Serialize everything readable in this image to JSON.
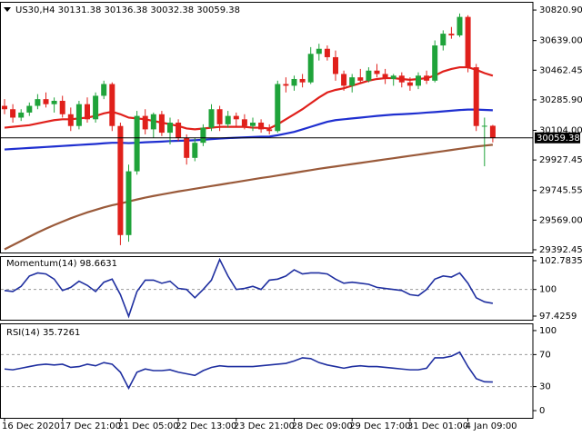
{
  "chart_data": [
    {
      "type": "candlestick",
      "title": "US30,H4  30131.38 30136.38 30032.38 30059.38",
      "categories": [
        "16 Dec 2020",
        null,
        null,
        null,
        null,
        null,
        null,
        "17 Dec 21:00",
        null,
        null,
        null,
        null,
        null,
        null,
        "21 Dec 05:00",
        null,
        null,
        null,
        null,
        null,
        null,
        "22 Dec 13:00",
        null,
        null,
        null,
        null,
        null,
        null,
        "23 Dec 21:00",
        null,
        null,
        null,
        null,
        null,
        null,
        "28 Dec 09:00",
        null,
        null,
        null,
        null,
        null,
        null,
        "29 Dec 17:00",
        null,
        null,
        null,
        null,
        null,
        null,
        "31 Dec 01:00",
        null,
        null,
        null,
        null,
        null,
        null,
        "4 Jan 09:00",
        null,
        null,
        null
      ],
      "open": [
        30250,
        30230,
        30180,
        30210,
        30250,
        30290,
        30260,
        30280,
        30200,
        30130,
        30260,
        30170,
        30310,
        30380,
        30130,
        29480,
        29860,
        30190,
        30110,
        30200,
        30090,
        30150,
        30060,
        29940,
        30030,
        30120,
        30230,
        30140,
        30190,
        30170,
        30130,
        30150,
        30110,
        30100,
        30380,
        30370,
        30410,
        30390,
        30560,
        30590,
        30540,
        30440,
        30370,
        30420,
        30400,
        30460,
        30440,
        30410,
        30430,
        30390,
        30370,
        30430,
        30400,
        30610,
        30680,
        30670,
        30780,
        30480,
        30130,
        30131.38
      ],
      "high": [
        30290,
        30260,
        30230,
        30270,
        30320,
        30330,
        30300,
        30310,
        30240,
        30280,
        30300,
        30330,
        30400,
        30390,
        30150,
        29900,
        30220,
        30230,
        30210,
        30220,
        30180,
        30170,
        30080,
        30060,
        30140,
        30260,
        30250,
        30220,
        30210,
        30200,
        30180,
        30170,
        30140,
        30400,
        30420,
        30430,
        30440,
        30600,
        30620,
        30610,
        30580,
        30460,
        30440,
        30470,
        30480,
        30500,
        30470,
        30440,
        30450,
        30420,
        30450,
        30460,
        30640,
        30700,
        30720,
        30800,
        30790,
        30500,
        30180,
        30136.38
      ],
      "low": [
        30200,
        30150,
        30160,
        30190,
        30230,
        30240,
        30210,
        30180,
        30100,
        30110,
        30150,
        30150,
        30290,
        30100,
        29420,
        29440,
        29840,
        30080,
        30060,
        30070,
        30020,
        30040,
        29900,
        29920,
        30010,
        30100,
        30100,
        30120,
        30130,
        30110,
        30100,
        30090,
        30080,
        30090,
        30330,
        30340,
        30360,
        30380,
        30520,
        30520,
        30400,
        30340,
        30330,
        30380,
        30390,
        30420,
        30380,
        30370,
        30360,
        30340,
        30350,
        30380,
        30390,
        30580,
        30650,
        30660,
        30450,
        30100,
        29890,
        30032.38
      ],
      "close": [
        30230,
        30180,
        30210,
        30250,
        30290,
        30260,
        30280,
        30200,
        30130,
        30260,
        30170,
        30310,
        30380,
        30130,
        29480,
        29860,
        30190,
        30110,
        30200,
        30090,
        30150,
        30060,
        29940,
        30030,
        30120,
        30230,
        30140,
        30190,
        30170,
        30130,
        30150,
        30110,
        30100,
        30380,
        30370,
        30410,
        30390,
        30560,
        30590,
        30540,
        30440,
        30370,
        30420,
        30400,
        30460,
        30440,
        30410,
        30430,
        30390,
        30370,
        30430,
        30400,
        30610,
        30680,
        30670,
        30780,
        30480,
        30130,
        30131.38,
        30059.38
      ],
      "up_color": "#1fa33a",
      "down_color": "#e0201b",
      "series": [
        {
          "color": "#e0201b",
          "values": [
            30120,
            30125,
            30130,
            30135,
            30145,
            30155,
            30165,
            30170,
            30170,
            30175,
            30180,
            30190,
            30205,
            30215,
            30200,
            30180,
            30175,
            30170,
            30160,
            30150,
            30140,
            30130,
            30115,
            30110,
            30115,
            30120,
            30125,
            30125,
            30125,
            30125,
            30120,
            30120,
            30115,
            30140,
            30170,
            30200,
            30230,
            30265,
            30300,
            30330,
            30345,
            30355,
            30370,
            30385,
            30400,
            30410,
            30415,
            30415,
            30410,
            30405,
            30410,
            30415,
            30430,
            30455,
            30470,
            30480,
            30480,
            30465,
            30445,
            30430
          ]
        },
        {
          "color": "#1f2fd0",
          "values": [
            29990,
            29993,
            29996,
            29999,
            30002,
            30005,
            30008,
            30011,
            30014,
            30017,
            30020,
            30023,
            30027,
            30030,
            30030,
            30028,
            30030,
            30033,
            30035,
            30037,
            30040,
            30042,
            30043,
            30045,
            30048,
            30052,
            30055,
            30058,
            30060,
            30062,
            30064,
            30066,
            30067,
            30075,
            30085,
            30095,
            30110,
            30125,
            30140,
            30155,
            30165,
            30170,
            30175,
            30180,
            30185,
            30190,
            30194,
            30198,
            30200,
            30203,
            30206,
            30210,
            30213,
            30217,
            30221,
            30225,
            30228,
            30228,
            30226,
            30224
          ]
        },
        {
          "color": "#9a5a3a",
          "values": [
            29395,
            29420,
            29445,
            29470,
            29495,
            29518,
            29540,
            29560,
            29580,
            29598,
            29615,
            29630,
            29645,
            29658,
            29668,
            29680,
            29692,
            29703,
            29713,
            29722,
            29731,
            29740,
            29748,
            29756,
            29764,
            29772,
            29780,
            29788,
            29796,
            29804,
            29812,
            29820,
            29827,
            29835,
            29843,
            29851,
            29859,
            29867,
            29875,
            29882,
            29889,
            29896,
            29903,
            29910,
            29917,
            29924,
            29931,
            29938,
            29945,
            29952,
            29959,
            29966,
            29973,
            29980,
            29987,
            29994,
            30001,
            30008,
            30013,
            30018
          ]
        }
      ],
      "ylim": [
        29376,
        30870
      ],
      "yticks": [
        29392.45,
        {
          "value": 29569,
          "label": "29569.00"
        },
        29745.55,
        29927.45,
        {
          "value": 30104,
          "label": "30104.00"
        },
        {
          "value": 30285.9,
          "label": "30285.90"
        },
        30462.45,
        {
          "value": 30639,
          "label": "30639.00"
        },
        {
          "value": 30820.9,
          "label": "30820.90"
        }
      ],
      "current_price": 30059.38
    },
    {
      "type": "line",
      "title": "Momentum(14) 98.6631",
      "color": "#1f2fa0",
      "values": [
        99.9,
        99.8,
        100.3,
        101.3,
        101.6,
        101.5,
        101.0,
        99.9,
        100.2,
        100.8,
        100.4,
        99.8,
        100.7,
        101.0,
        99.5,
        97.4,
        99.8,
        100.9,
        100.9,
        100.6,
        100.8,
        100.1,
        100.0,
        99.2,
        100.0,
        100.9,
        102.9,
        101.3,
        100.0,
        100.1,
        100.3,
        100.0,
        100.9,
        101.0,
        101.3,
        101.9,
        101.5,
        101.6,
        101.6,
        101.5,
        101.0,
        100.6,
        100.7,
        100.6,
        100.5,
        100.2,
        100.1,
        100.0,
        99.9,
        99.5,
        99.4,
        100.0,
        101.0,
        101.3,
        101.2,
        101.6,
        100.6,
        99.2,
        98.8,
        98.6631
      ],
      "ylim": [
        97.075,
        103.22
      ],
      "yticks": [
        97.4259,
        100,
        102.7835
      ]
    },
    {
      "type": "line",
      "title": "RSI(14) 35.7261",
      "color": "#1f2fa0",
      "values": [
        52,
        51,
        53,
        55,
        57,
        58,
        57,
        58,
        54,
        55,
        58,
        56,
        60,
        58,
        48,
        28,
        48,
        52,
        50,
        50,
        51,
        48,
        46,
        44,
        50,
        54,
        56,
        55,
        55,
        55,
        55,
        56,
        57,
        58,
        59,
        62,
        66,
        65,
        60,
        57,
        55,
        53,
        55,
        56,
        55,
        55,
        54,
        53,
        52,
        51,
        51,
        53,
        66,
        66,
        68,
        73,
        55,
        40,
        36,
        35.7261
      ],
      "ylim": [
        -9,
        109
      ],
      "yticks": [
        0,
        30,
        70,
        100
      ]
    }
  ]
}
